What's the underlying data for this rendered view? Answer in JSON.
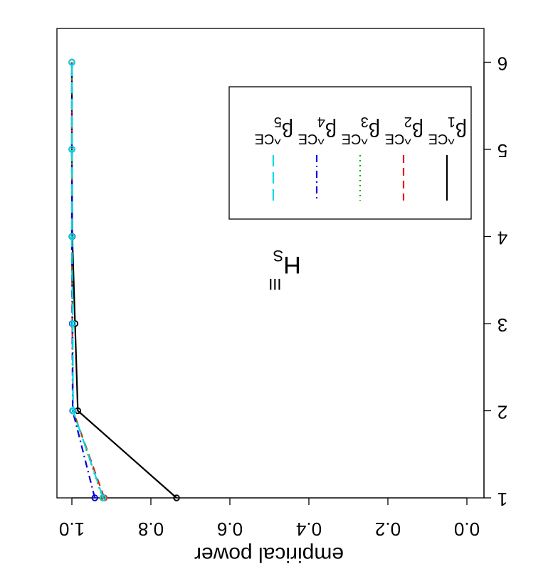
{
  "chart_data": {
    "type": "line",
    "title": "H",
    "title_sub": "S",
    "title_sup": "III",
    "xlabel": "",
    "ylabel": "empirical power",
    "x": [
      1,
      2,
      3,
      4,
      5,
      6
    ],
    "x_ticks": [
      "1",
      "2",
      "3",
      "4",
      "5",
      "6"
    ],
    "y_ticks": [
      "0.0",
      "0.2",
      "0.4",
      "0.6",
      "0.8",
      "1.0"
    ],
    "xlim": [
      1,
      6
    ],
    "ylim": [
      0,
      1
    ],
    "grid": false,
    "legend_position": "top-right",
    "series": [
      {
        "name": "β1 ^CE",
        "base": "β",
        "sub": "1",
        "sup": "^CE",
        "color": "#000000",
        "dash": "",
        "values": [
          0.735,
          0.985,
          0.992,
          0.999,
          1.0,
          1.0
        ]
      },
      {
        "name": "β2 ^CE",
        "base": "β",
        "sub": "2",
        "sup": "^CE",
        "color": "#e41a1c",
        "dash": "11,7",
        "values": [
          0.918,
          0.997,
          0.999,
          1.0,
          1.0,
          1.0
        ]
      },
      {
        "name": "β3 ^CE",
        "base": "β",
        "sub": "3",
        "sup": "^CE",
        "color": "#00b000",
        "dash": "2,5",
        "values": [
          0.922,
          0.997,
          0.998,
          1.0,
          1.0,
          1.0
        ]
      },
      {
        "name": "β4 ^CE",
        "base": "β",
        "sub": "4",
        "sup": "^CE",
        "color": "#0000dd",
        "dash": "10,5,2,5",
        "values": [
          0.942,
          0.998,
          0.999,
          1.0,
          1.0,
          1.0
        ]
      },
      {
        "name": "β5 ^CE",
        "base": "β",
        "sub": "5",
        "sup": "^CE",
        "color": "#00d8e6",
        "dash": "16,8",
        "values": [
          0.921,
          0.997,
          0.998,
          1.0,
          1.0,
          1.0
        ]
      }
    ]
  }
}
